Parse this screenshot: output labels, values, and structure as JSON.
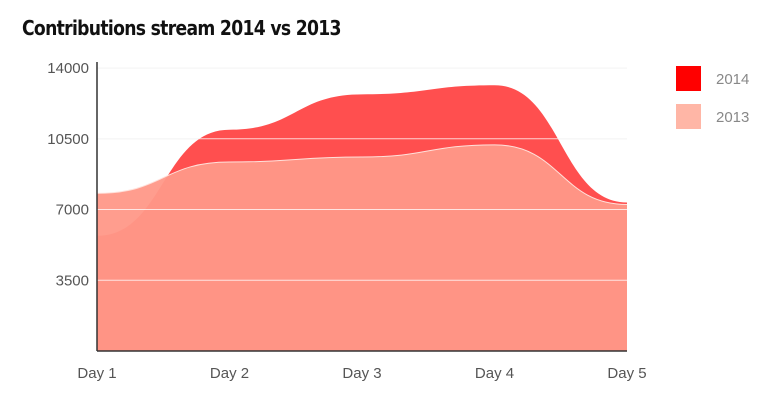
{
  "chart_data": {
    "type": "area",
    "title": "Contributions stream 2014 vs 2013",
    "categories": [
      "Day 1",
      "Day 2",
      "Day 3",
      "Day 4",
      "Day 5"
    ],
    "yticks": [
      3500,
      7000,
      10500,
      14000
    ],
    "ylim": [
      0,
      14300
    ],
    "grid": true,
    "legend_position": "right",
    "series": [
      {
        "name": "2014",
        "color": "#ff4f4f",
        "legend_color": "#ff0000",
        "values": [
          5700,
          10950,
          12700,
          13150,
          7350
        ]
      },
      {
        "name": "2013",
        "color": "#ff9a8a",
        "legend_color": "#ffb6a6",
        "values": [
          7800,
          9350,
          9600,
          10200,
          7250
        ]
      }
    ]
  }
}
